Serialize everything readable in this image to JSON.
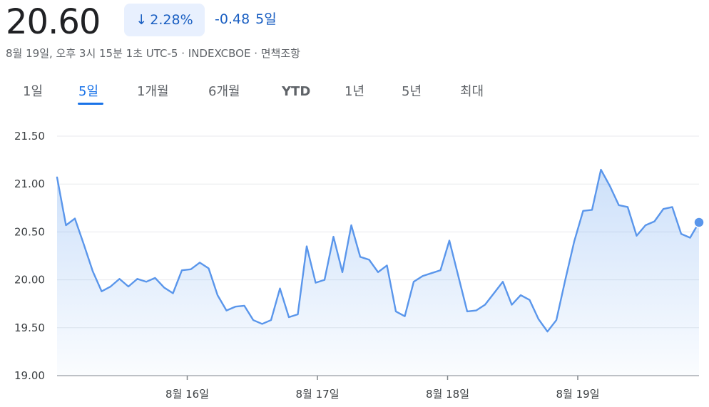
{
  "header": {
    "price": "20.60",
    "change_arrow": "↓",
    "change_pct": "2.28%",
    "change_abs": "-0.48",
    "change_period": "5일",
    "meta": "8월 19일, 오후 3시 15분 1초 UTC-5 · INDEXCBOE · 면책조항",
    "change_color": "#1a5fc2",
    "chip_bg": "#e8f0fe"
  },
  "tabs": [
    {
      "label": "1일",
      "active": false
    },
    {
      "label": "5일",
      "active": true
    },
    {
      "label": "1개월",
      "active": false
    },
    {
      "label": "6개월",
      "active": false
    },
    {
      "label": "YTD",
      "active": false
    },
    {
      "label": "1년",
      "active": false
    },
    {
      "label": "5년",
      "active": false
    },
    {
      "label": "최대",
      "active": false
    }
  ],
  "chart_data": {
    "type": "area",
    "ylim": [
      19.0,
      21.5
    ],
    "yticks": [
      "21.50",
      "21.00",
      "20.50",
      "20.00",
      "19.50",
      "19.00"
    ],
    "ytick_values": [
      21.5,
      21.0,
      20.5,
      20.0,
      19.5,
      19.0
    ],
    "xlim": [
      0,
      72
    ],
    "xticks": [
      {
        "label": "8월 16일",
        "x": 14.6
      },
      {
        "label": "8월 17일",
        "x": 29.2
      },
      {
        "label": "8월 18일",
        "x": 43.8
      },
      {
        "label": "8월 19일",
        "x": 58.4
      }
    ],
    "line_color": "#5a96eb",
    "fill_color": "#1a73e8",
    "grid": true,
    "last_point_marker": true,
    "values": [
      21.07,
      20.57,
      20.64,
      20.37,
      20.09,
      19.88,
      19.93,
      20.01,
      19.93,
      20.01,
      19.98,
      20.02,
      19.92,
      19.86,
      20.1,
      20.11,
      20.18,
      20.12,
      19.84,
      19.68,
      19.72,
      19.73,
      19.58,
      19.54,
      19.58,
      19.91,
      19.61,
      19.64,
      20.35,
      19.97,
      20.0,
      20.45,
      20.08,
      20.57,
      20.24,
      20.21,
      20.08,
      20.15,
      19.67,
      19.62,
      19.98,
      20.04,
      20.07,
      20.1,
      20.41,
      20.04,
      19.67,
      19.68,
      19.74,
      19.86,
      19.98,
      19.74,
      19.84,
      19.79,
      19.59,
      19.46,
      19.58,
      20.0,
      20.4,
      20.72,
      20.73,
      21.15,
      20.98,
      20.78,
      20.76,
      20.46,
      20.57,
      20.61,
      20.74,
      20.76,
      20.48,
      20.44,
      20.6
    ]
  }
}
